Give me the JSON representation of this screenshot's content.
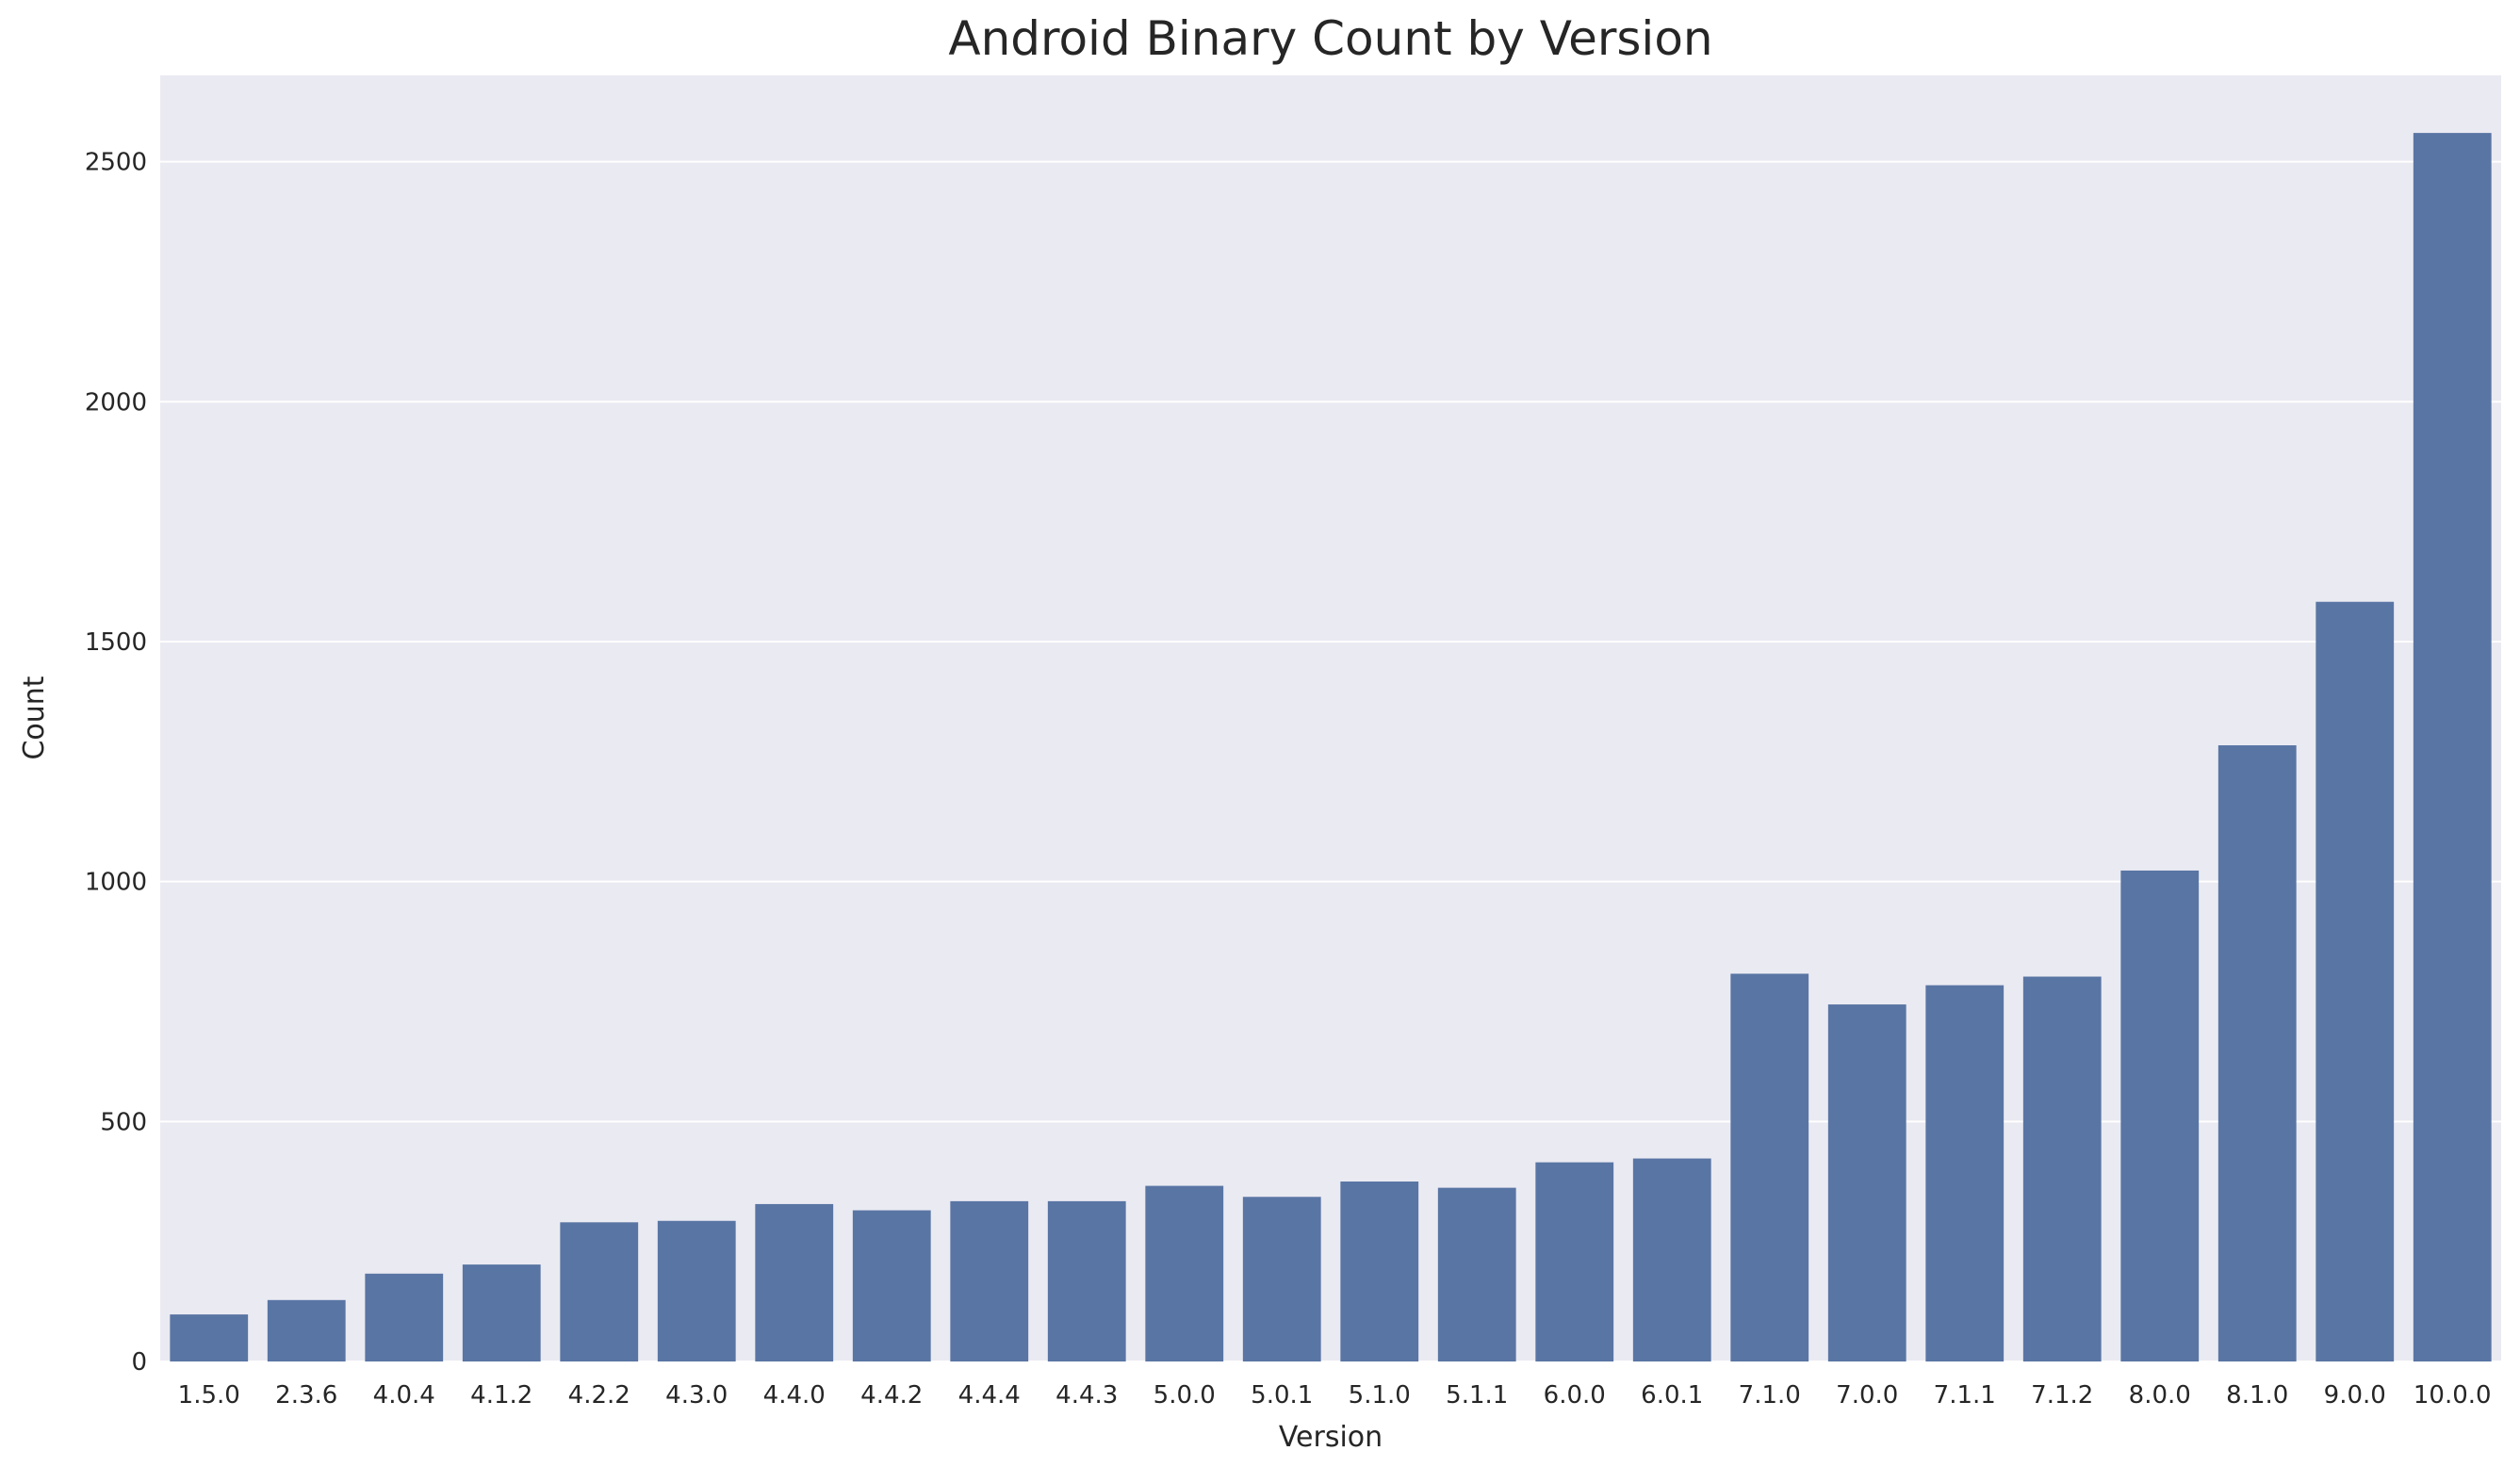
{
  "chart_data": {
    "type": "bar",
    "title": "Android Binary Count by Version",
    "xlabel": "Version",
    "ylabel": "Count",
    "categories": [
      "1.5.0",
      "2.3.6",
      "4.0.4",
      "4.1.2",
      "4.2.2",
      "4.3.0",
      "4.4.0",
      "4.4.2",
      "4.4.4",
      "4.4.3",
      "5.0.0",
      "5.0.1",
      "5.1.0",
      "5.1.1",
      "6.0.0",
      "6.0.1",
      "7.1.0",
      "7.0.0",
      "7.1.1",
      "7.1.2",
      "8.0.0",
      "8.1.0",
      "9.0.0",
      "10.0.0"
    ],
    "values": [
      98,
      128,
      183,
      202,
      290,
      293,
      328,
      315,
      334,
      334,
      366,
      343,
      375,
      362,
      415,
      423,
      808,
      744,
      784,
      802,
      1023,
      1284,
      1583,
      2560
    ],
    "ylim": [
      0,
      2680
    ],
    "yticks": [
      0,
      500,
      1000,
      1500,
      2000,
      2500
    ],
    "grid": true,
    "colors": {
      "bar": "#5975a4",
      "background": "#eaeaf2",
      "grid": "#ffffff"
    }
  }
}
